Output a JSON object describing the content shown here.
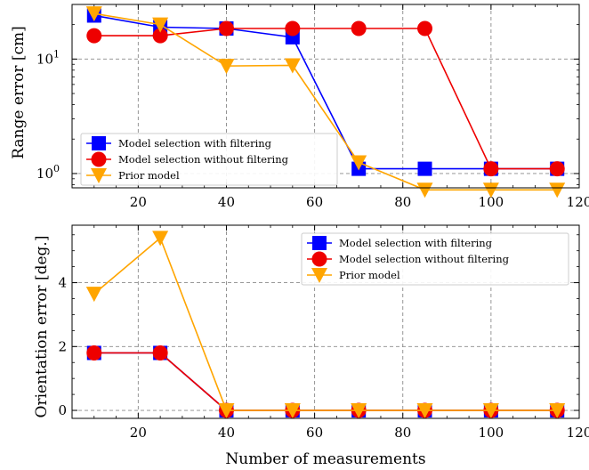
{
  "chart_data": [
    {
      "type": "line",
      "ylabel": "Range error [cm]",
      "xlabel": "",
      "xlim": [
        5,
        120
      ],
      "ylim": [
        0.75,
        30
      ],
      "yscale": "log",
      "xticks": [
        20,
        40,
        60,
        80,
        100,
        120
      ],
      "xtick_labels": [
        "20",
        "40",
        "60",
        "80",
        "100",
        "120"
      ],
      "yticks": [
        1,
        10
      ],
      "ytick_labels_base": [
        "10",
        "10"
      ],
      "ytick_labels_exp": [
        "0",
        "1"
      ],
      "grid": true,
      "legend_position": "lower-left",
      "x": [
        10,
        25,
        40,
        55,
        70,
        85,
        100,
        115
      ],
      "series": [
        {
          "name": "Model selection with filtering",
          "color": "#0000ff",
          "marker": "square",
          "values": [
            24,
            19,
            18.5,
            15.5,
            1.1,
            1.1,
            1.1,
            1.1
          ]
        },
        {
          "name": "Model selection without filtering",
          "color": "#ee0000",
          "marker": "circle",
          "values": [
            16,
            16,
            18.5,
            18.5,
            18.5,
            18.5,
            1.1,
            1.1
          ]
        },
        {
          "name": "Prior model",
          "color": "#ffa500",
          "marker": "triangle-down",
          "values": [
            25,
            20,
            8.7,
            8.8,
            1.25,
            0.72,
            0.72,
            0.72
          ]
        }
      ]
    },
    {
      "type": "line",
      "ylabel": "Orientation error [deg.]",
      "xlabel": "Number of measurements",
      "xlim": [
        5,
        120
      ],
      "ylim": [
        -0.25,
        5.8
      ],
      "xticks": [
        20,
        40,
        60,
        80,
        100,
        120
      ],
      "xtick_labels": [
        "20",
        "40",
        "60",
        "80",
        "100",
        "120"
      ],
      "yticks": [
        0,
        2,
        4
      ],
      "ytick_labels": [
        "0",
        "2",
        "4"
      ],
      "grid": true,
      "legend_position": "upper-right",
      "x": [
        10,
        25,
        40,
        55,
        70,
        85,
        100,
        115
      ],
      "series": [
        {
          "name": "Model selection with filtering",
          "color": "#0000ff",
          "marker": "square",
          "values": [
            1.8,
            1.8,
            0,
            0,
            0,
            0,
            0,
            0
          ]
        },
        {
          "name": "Model selection without filtering",
          "color": "#ee0000",
          "marker": "circle",
          "values": [
            1.8,
            1.8,
            0,
            0,
            0,
            0,
            0,
            0
          ]
        },
        {
          "name": "Prior model",
          "color": "#ffa500",
          "marker": "triangle-down",
          "values": [
            3.65,
            5.4,
            0,
            0,
            0,
            0,
            0,
            0
          ]
        }
      ]
    }
  ]
}
